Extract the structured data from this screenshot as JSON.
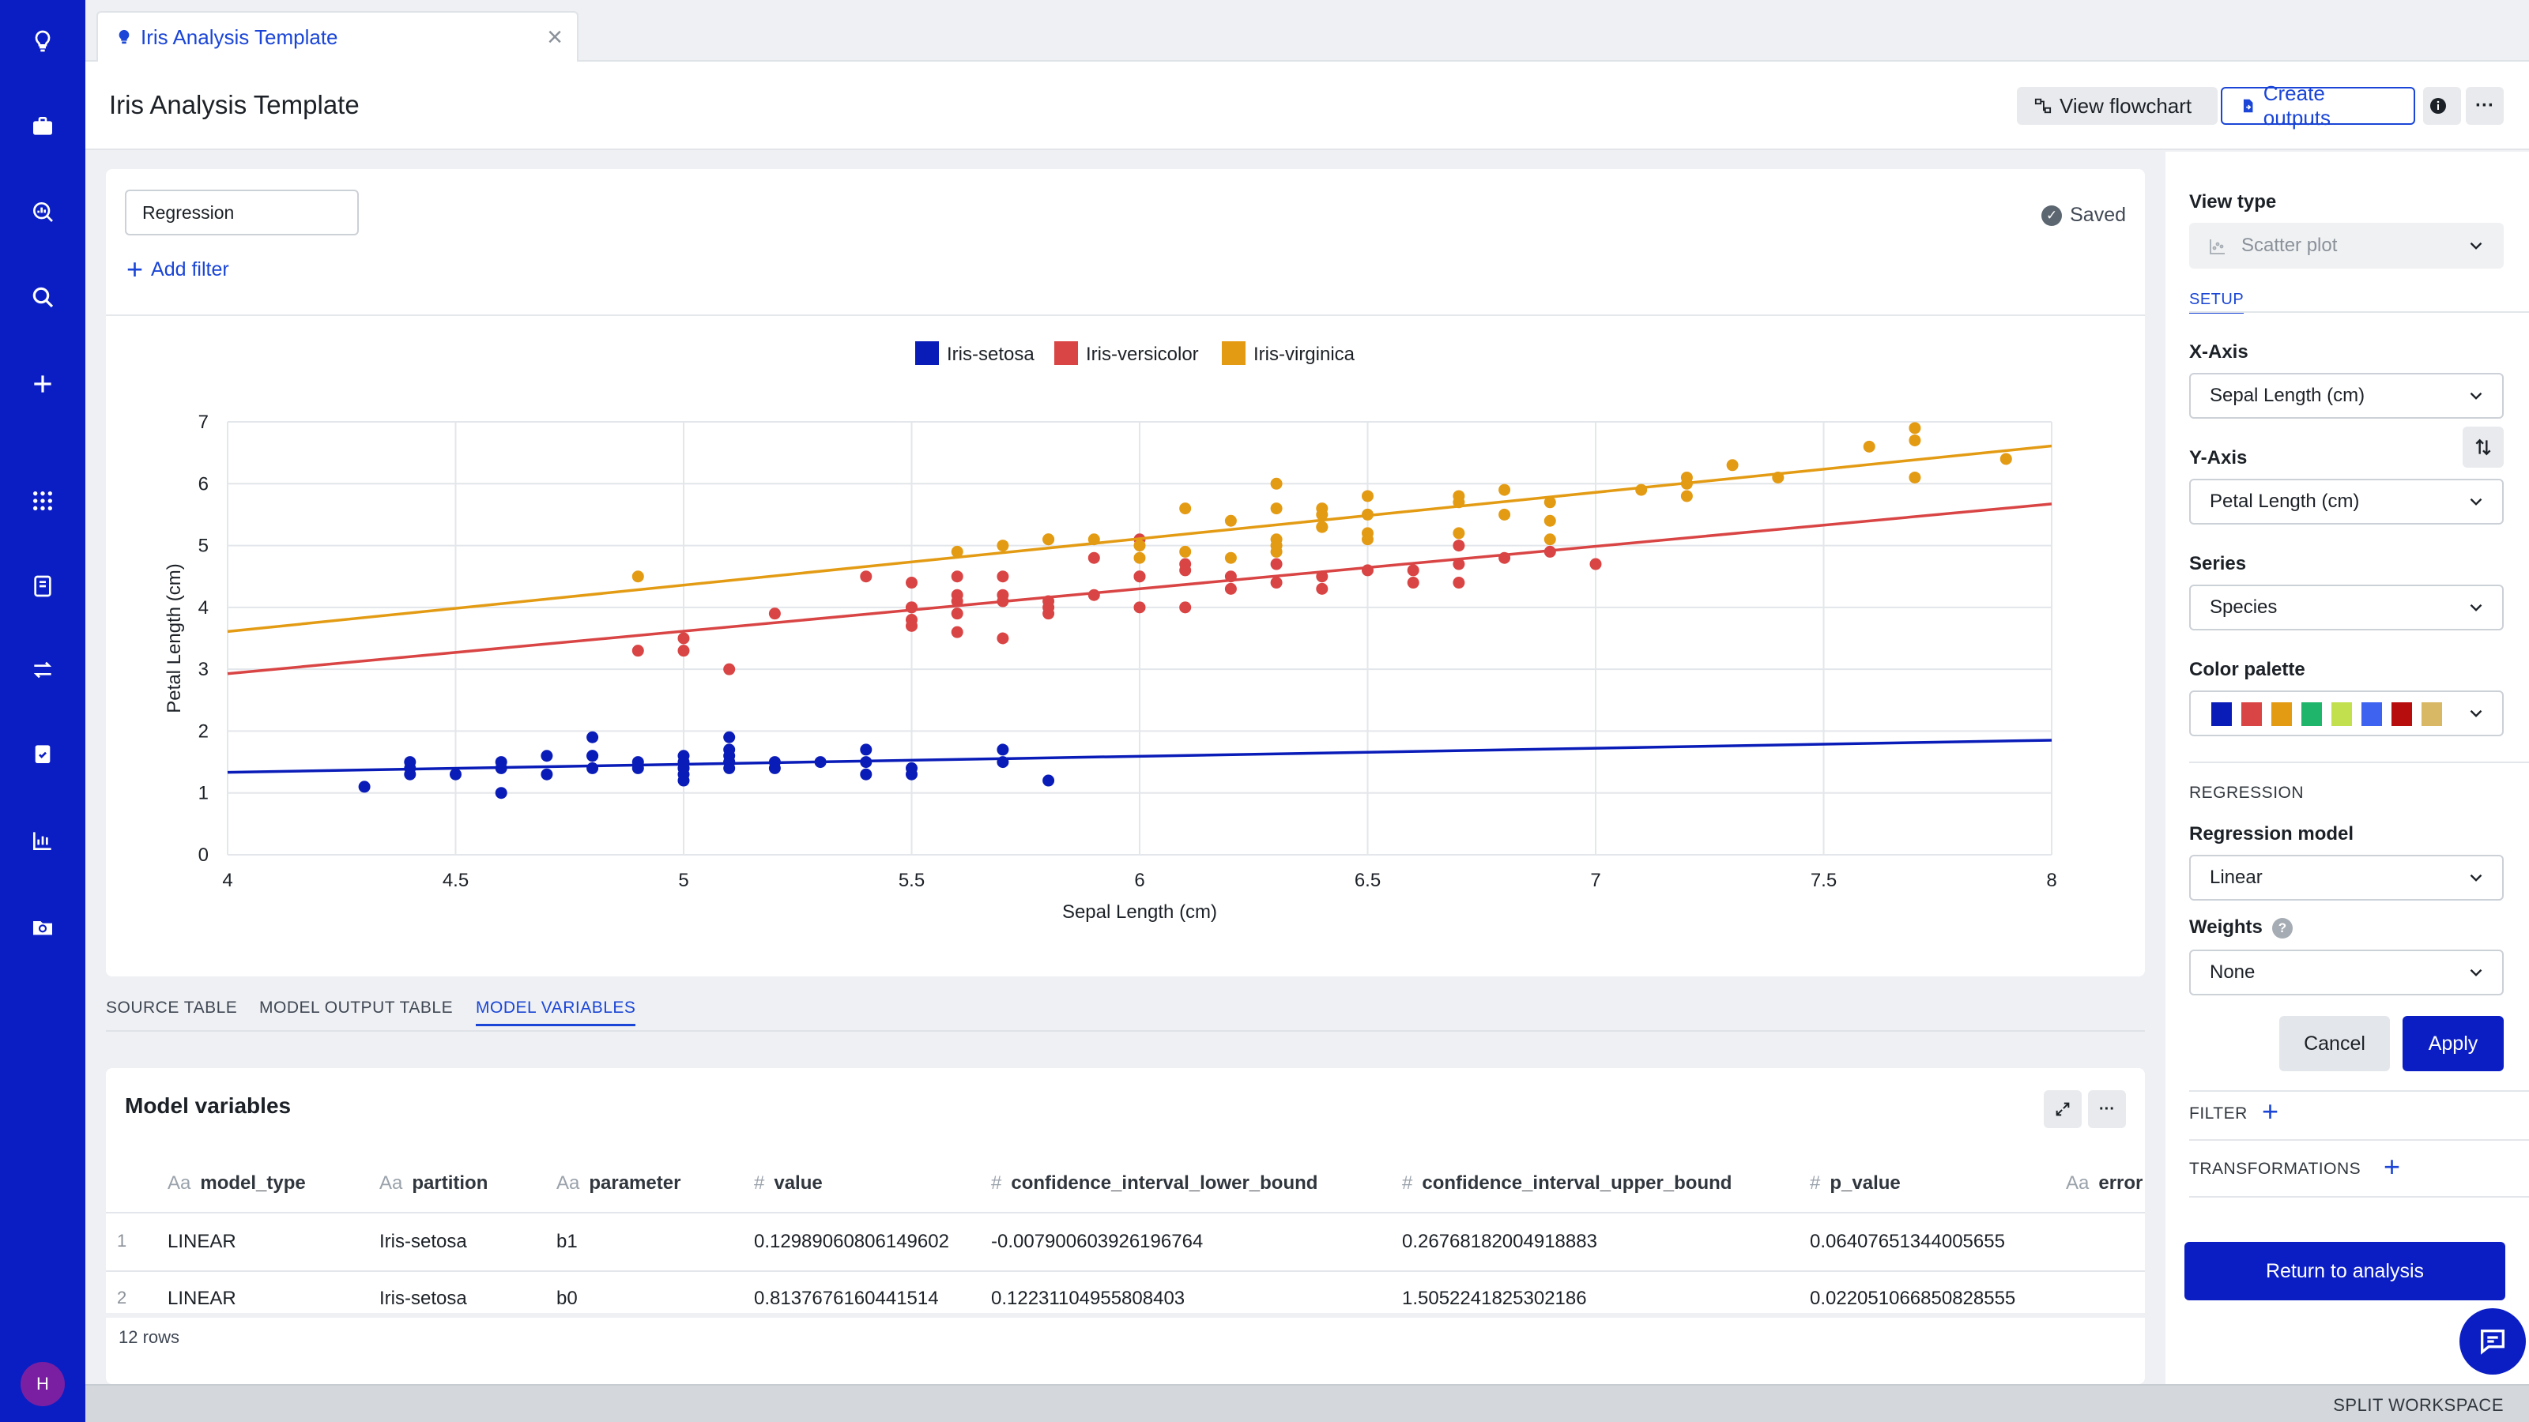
{
  "tab": {
    "label": "Iris Analysis Template"
  },
  "header": {
    "title": "Iris Analysis Template",
    "view_flowchart": "View flowchart",
    "create_outputs": "Create outputs"
  },
  "filters": {
    "current": "Regression",
    "add_filter": "Add filter",
    "status": "Saved"
  },
  "chart_data": {
    "type": "scatter",
    "xlabel": "Sepal Length (cm)",
    "ylabel": "Petal Length (cm)",
    "xlim": [
      4,
      8
    ],
    "ylim": [
      0,
      7
    ],
    "xticks": [
      4,
      4.5,
      5,
      5.5,
      6,
      6.5,
      7,
      7.5,
      8
    ],
    "xtick_labels": [
      "4",
      "4.5",
      "5",
      "5.5",
      "6",
      "6.5",
      "7",
      "7.5",
      "8"
    ],
    "yticks": [
      0,
      1,
      2,
      3,
      4,
      5,
      6,
      7
    ],
    "ytick_labels": [
      "0",
      "1",
      "2",
      "3",
      "4",
      "5",
      "6",
      "7"
    ],
    "grid": true,
    "legend_position": "top-center",
    "series": [
      {
        "name": "Iris-setosa",
        "color": "#0a1cb8",
        "regression": {
          "b0": 0.8137676160441514,
          "b1": 0.12989060806149602
        },
        "points": [
          [
            4.3,
            1.1
          ],
          [
            4.4,
            1.4
          ],
          [
            4.4,
            1.3
          ],
          [
            4.4,
            1.5
          ],
          [
            4.5,
            1.3
          ],
          [
            4.6,
            1.4
          ],
          [
            4.6,
            1.5
          ],
          [
            4.6,
            1.0
          ],
          [
            4.7,
            1.3
          ],
          [
            4.7,
            1.6
          ],
          [
            4.8,
            1.6
          ],
          [
            4.8,
            1.4
          ],
          [
            4.8,
            1.9
          ],
          [
            4.8,
            1.6
          ],
          [
            4.9,
            1.4
          ],
          [
            4.9,
            1.5
          ],
          [
            5.0,
            1.4
          ],
          [
            5.0,
            1.5
          ],
          [
            5.0,
            1.2
          ],
          [
            5.0,
            1.3
          ],
          [
            5.0,
            1.6
          ],
          [
            5.0,
            1.4
          ],
          [
            5.1,
            1.4
          ],
          [
            5.1,
            1.5
          ],
          [
            5.1,
            1.7
          ],
          [
            5.1,
            1.5
          ],
          [
            5.1,
            1.9
          ],
          [
            5.1,
            1.6
          ],
          [
            5.2,
            1.5
          ],
          [
            5.2,
            1.4
          ],
          [
            5.3,
            1.5
          ],
          [
            5.4,
            1.7
          ],
          [
            5.4,
            1.5
          ],
          [
            5.4,
            1.3
          ],
          [
            5.5,
            1.4
          ],
          [
            5.5,
            1.3
          ],
          [
            5.7,
            1.7
          ],
          [
            5.7,
            1.5
          ],
          [
            5.8,
            1.2
          ]
        ]
      },
      {
        "name": "Iris-versicolor",
        "color": "#d94444",
        "regression": {
          "b0": 0.185,
          "b1": 0.686
        },
        "points": [
          [
            4.9,
            3.3
          ],
          [
            5.0,
            3.5
          ],
          [
            5.0,
            3.3
          ],
          [
            5.1,
            3.0
          ],
          [
            5.2,
            3.9
          ],
          [
            5.4,
            4.5
          ],
          [
            5.5,
            4.0
          ],
          [
            5.5,
            3.8
          ],
          [
            5.5,
            3.7
          ],
          [
            5.5,
            4.4
          ],
          [
            5.5,
            4.0
          ],
          [
            5.6,
            4.5
          ],
          [
            5.6,
            3.6
          ],
          [
            5.6,
            3.9
          ],
          [
            5.6,
            4.2
          ],
          [
            5.6,
            4.1
          ],
          [
            5.7,
            4.5
          ],
          [
            5.7,
            4.2
          ],
          [
            5.7,
            4.1
          ],
          [
            5.7,
            3.5
          ],
          [
            5.8,
            4.1
          ],
          [
            5.8,
            3.9
          ],
          [
            5.8,
            4.0
          ],
          [
            5.9,
            4.8
          ],
          [
            5.9,
            4.2
          ],
          [
            6.0,
            4.0
          ],
          [
            6.0,
            4.5
          ],
          [
            6.0,
            5.1
          ],
          [
            6.0,
            4.5
          ],
          [
            6.1,
            4.7
          ],
          [
            6.1,
            4.0
          ],
          [
            6.1,
            4.6
          ],
          [
            6.2,
            4.5
          ],
          [
            6.2,
            4.3
          ],
          [
            6.3,
            4.7
          ],
          [
            6.3,
            4.4
          ],
          [
            6.4,
            4.3
          ],
          [
            6.4,
            4.5
          ],
          [
            6.5,
            4.6
          ],
          [
            6.6,
            4.6
          ],
          [
            6.6,
            4.4
          ],
          [
            6.7,
            4.4
          ],
          [
            6.7,
            4.7
          ],
          [
            6.7,
            5.0
          ],
          [
            6.8,
            4.8
          ],
          [
            6.9,
            4.9
          ],
          [
            7.0,
            4.7
          ]
        ]
      },
      {
        "name": "Iris-virginica",
        "color": "#e39b14",
        "regression": {
          "b0": 0.61,
          "b1": 0.75
        },
        "points": [
          [
            4.9,
            4.5
          ],
          [
            5.6,
            4.9
          ],
          [
            5.7,
            5.0
          ],
          [
            5.8,
            5.1
          ],
          [
            5.8,
            5.1
          ],
          [
            5.9,
            5.1
          ],
          [
            6.0,
            5.0
          ],
          [
            6.0,
            4.8
          ],
          [
            6.1,
            5.6
          ],
          [
            6.1,
            4.9
          ],
          [
            6.2,
            5.4
          ],
          [
            6.2,
            4.8
          ],
          [
            6.3,
            6.0
          ],
          [
            6.3,
            5.6
          ],
          [
            6.3,
            5.1
          ],
          [
            6.3,
            4.9
          ],
          [
            6.3,
            5.0
          ],
          [
            6.4,
            5.6
          ],
          [
            6.4,
            5.3
          ],
          [
            6.4,
            5.5
          ],
          [
            6.4,
            5.3
          ],
          [
            6.5,
            5.8
          ],
          [
            6.5,
            5.5
          ],
          [
            6.5,
            5.2
          ],
          [
            6.5,
            5.1
          ],
          [
            6.7,
            5.8
          ],
          [
            6.7,
            5.7
          ],
          [
            6.7,
            5.2
          ],
          [
            6.8,
            5.9
          ],
          [
            6.8,
            5.5
          ],
          [
            6.9,
            5.7
          ],
          [
            6.9,
            5.4
          ],
          [
            6.9,
            5.1
          ],
          [
            7.1,
            5.9
          ],
          [
            7.2,
            6.1
          ],
          [
            7.2,
            6.0
          ],
          [
            7.2,
            5.8
          ],
          [
            7.3,
            6.3
          ],
          [
            7.4,
            6.1
          ],
          [
            7.6,
            6.6
          ],
          [
            7.7,
            6.9
          ],
          [
            7.7,
            6.7
          ],
          [
            7.7,
            6.1
          ],
          [
            7.9,
            6.4
          ]
        ]
      }
    ]
  },
  "subtabs": [
    {
      "label": "SOURCE TABLE"
    },
    {
      "label": "MODEL OUTPUT TABLE"
    },
    {
      "label": "MODEL VARIABLES"
    }
  ],
  "model_variables": {
    "title": "Model variables",
    "type_text": "Aa",
    "type_num": "#",
    "columns": [
      "model_type",
      "partition",
      "parameter",
      "value",
      "confidence_interval_lower_bound",
      "confidence_interval_upper_bound",
      "p_value",
      "error"
    ],
    "rows": [
      {
        "n": "1",
        "cells": [
          "LINEAR",
          "Iris-setosa",
          "b1",
          "0.12989060806149602",
          "-0.007900603926196764",
          "0.26768182004918883",
          "0.06407651344005655"
        ]
      },
      {
        "n": "2",
        "cells": [
          "LINEAR",
          "Iris-setosa",
          "b0",
          "0.8137676160441514",
          "0.12231104955808403",
          "1.5052241825302186",
          "0.022051066850828555"
        ]
      }
    ],
    "row_count": "12 rows"
  },
  "panel": {
    "view_type_label": "View type",
    "view_type_value": "Scatter plot",
    "setup_tab": "SETUP",
    "x_axis_label": "X-Axis",
    "x_axis_value": "Sepal Length (cm)",
    "y_axis_label": "Y-Axis",
    "y_axis_value": "Petal Length (cm)",
    "series_label": "Series",
    "series_value": "Species",
    "palette_label": "Color palette",
    "palette": [
      "#0a1cb8",
      "#d94444",
      "#e39b14",
      "#1fb56a",
      "#c2e04e",
      "#3e63f0",
      "#b80d0d",
      "#d8b865"
    ],
    "regression_section": "REGRESSION",
    "regression_model_label": "Regression model",
    "regression_model_value": "Linear",
    "weights_label": "Weights",
    "weights_value": "None",
    "cancel": "Cancel",
    "apply": "Apply",
    "filter_section": "FILTER",
    "transformations_section": "TRANSFORMATIONS",
    "return": "Return to analysis"
  },
  "user": {
    "initial": "H"
  },
  "footer": {
    "split_workspace": "SPLIT WORKSPACE"
  }
}
